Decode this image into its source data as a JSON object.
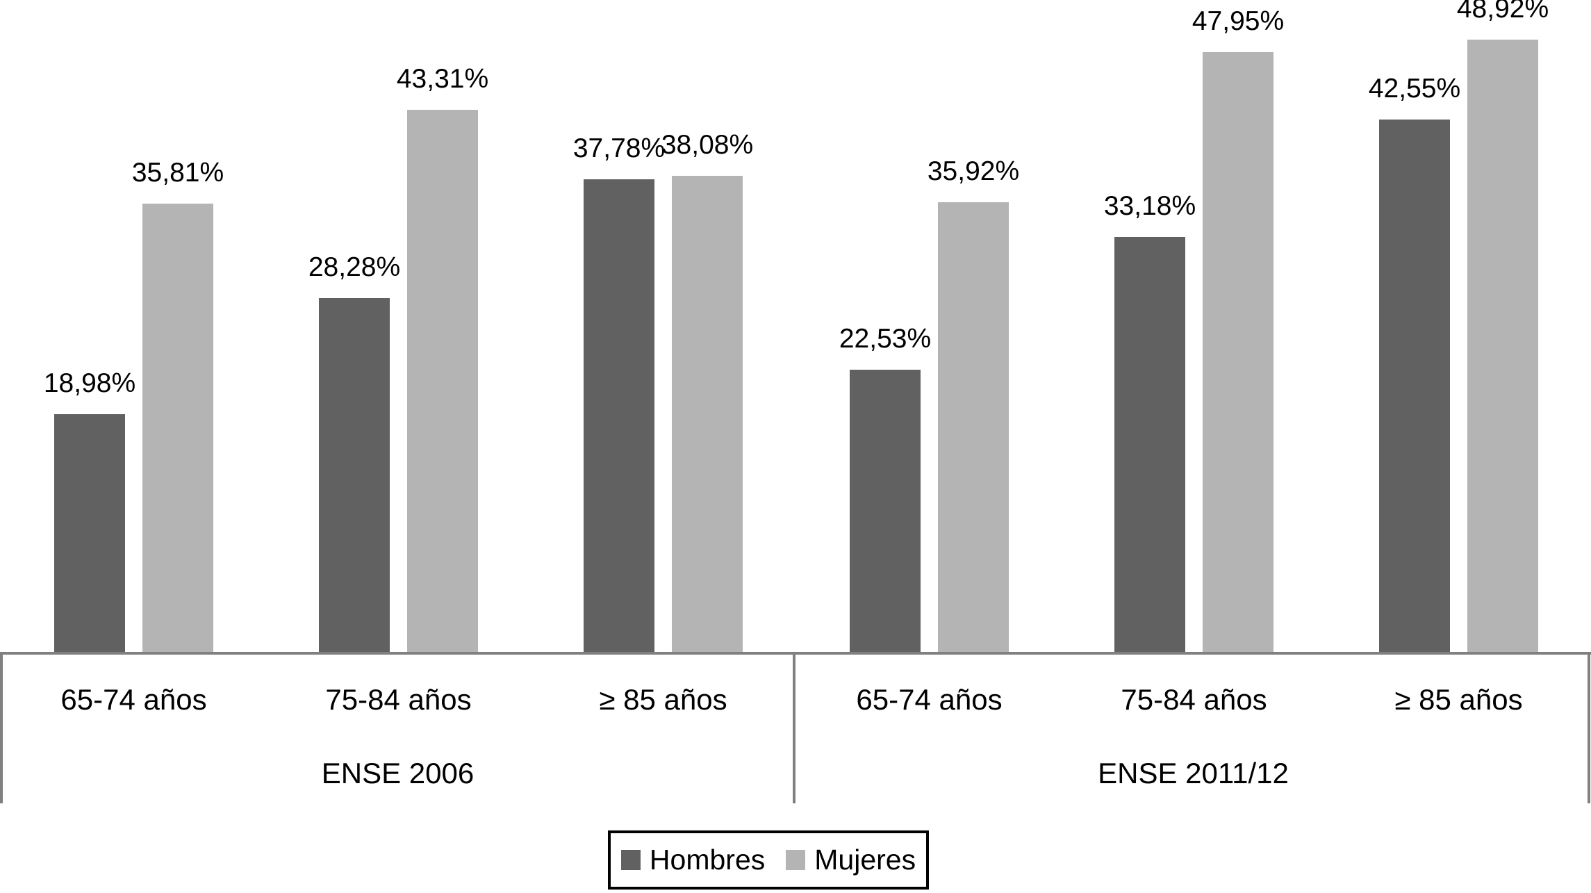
{
  "chart_data": {
    "type": "bar",
    "title": "",
    "value_unit": "%",
    "decimal_separator": ",",
    "grid": false,
    "ylim": [
      0,
      52.1
    ],
    "legend_position": "bottom",
    "series_names": [
      "Hombres",
      "Mujeres"
    ],
    "panels": [
      {
        "label": "ENSE 2006",
        "groups": [
          {
            "category": "65-74 años",
            "bars": [
              {
                "series": "Hombres",
                "value": 18.98,
                "label": "18,98%"
              },
              {
                "series": "Mujeres",
                "value": 35.81,
                "label": "35,81%"
              }
            ]
          },
          {
            "category": "75-84 años",
            "bars": [
              {
                "series": "Hombres",
                "value": 28.28,
                "label": "28,28%"
              },
              {
                "series": "Mujeres",
                "value": 43.31,
                "label": "43,31%"
              }
            ]
          },
          {
            "category": "≥ 85 años",
            "bars": [
              {
                "series": "Hombres",
                "value": 37.78,
                "label": "37,78%"
              },
              {
                "series": "Mujeres",
                "value": 38.08,
                "label": "38,08%"
              }
            ]
          }
        ]
      },
      {
        "label": "ENSE 2011/12",
        "groups": [
          {
            "category": "65-74 años",
            "bars": [
              {
                "series": "Hombres",
                "value": 22.53,
                "label": "22,53%"
              },
              {
                "series": "Mujeres",
                "value": 35.92,
                "label": "35,92%"
              }
            ]
          },
          {
            "category": "75-84 años",
            "bars": [
              {
                "series": "Hombres",
                "value": 33.18,
                "label": "33,18%"
              },
              {
                "series": "Mujeres",
                "value": 47.95,
                "label": "47,95%"
              }
            ]
          },
          {
            "category": "≥ 85 años",
            "bars": [
              {
                "series": "Hombres",
                "value": 42.55,
                "label": "42,55%"
              },
              {
                "series": "Mujeres",
                "value": 48.92,
                "label": "48,92%"
              }
            ]
          }
        ]
      }
    ],
    "legend": [
      {
        "name": "Hombres",
        "color": "#616161"
      },
      {
        "name": "Mujeres",
        "color": "#b4b4b4"
      }
    ],
    "colors": {
      "Hombres": "#616161",
      "Mujeres": "#b4b4b4",
      "axis_line": "#808080",
      "legend_border": "#000000",
      "text": "#000000"
    }
  }
}
